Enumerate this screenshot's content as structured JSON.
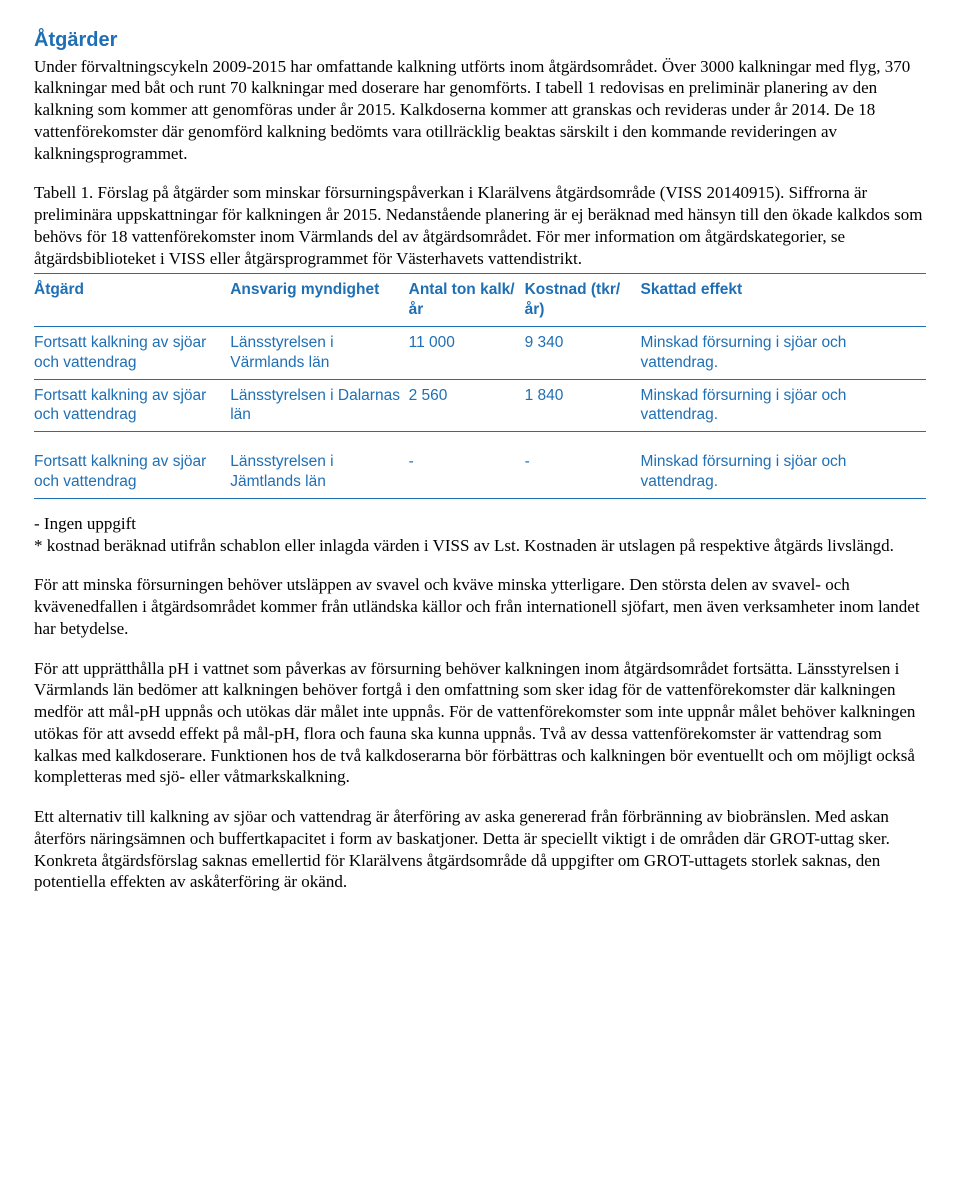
{
  "colors": {
    "heading_blue": "#1f6fb5",
    "table_blue": "#1f6fb5",
    "body_text": "#000000",
    "border_blue": "#1f6fb5"
  },
  "heading": "Åtgärder",
  "para1": "Under förvaltningscykeln 2009-2015 har omfattande kalkning utförts inom åtgärdsområdet. Över 3000 kalkningar med flyg, 370 kalkningar med båt och runt 70 kalkningar med doserare har genomförts. I tabell 1 redovisas en preliminär planering av den kalkning som kommer att genomföras under år 2015. Kalkdoserna kommer att granskas och revideras under år 2014. De 18 vattenförekomster där genomförd kalkning bedömts vara otillräcklig beaktas särskilt i den kommande revideringen av kalkningsprogrammet.",
  "para2": "Tabell 1. Förslag på åtgärder som minskar försurningspåverkan i Klarälvens åtgärdsområde (VISS 20140915). Siffrorna är preliminära uppskattningar för kalkningen år 2015. Nedanstående planering är ej beräknad med hänsyn till den ökade kalkdos som behövs för 18 vattenförekomster inom Värmlands del av åtgärdsområdet. För mer information om åtgärdskategorier, se åtgärdsbiblioteket i VISS eller åtgärsprogrammet för Västerhavets vattendistrikt.",
  "table": {
    "headers": {
      "atgard": "Åtgärd",
      "myndighet": "Ansvarig myndighet",
      "kalk": "Antal ton kalk/år",
      "kostnad": "Kostnad (tkr/år)",
      "effekt": "Skattad effekt"
    },
    "rows": [
      {
        "atgard": "Fortsatt kalkning av sjöar och vattendrag",
        "myndighet": "Länsstyrelsen i Värmlands län",
        "kalk": "11 000",
        "kostnad": "9 340",
        "effekt": "Minskad försurning i sjöar och vattendrag."
      },
      {
        "atgard": "Fortsatt kalkning av sjöar och vattendrag",
        "myndighet": "Länsstyrelsen i Dalarnas län",
        "kalk": "2 560",
        "kostnad": "1 840",
        "effekt": "Minskad försurning i sjöar och vattendrag."
      },
      {
        "atgard": "Fortsatt kalkning av sjöar och vattendrag",
        "myndighet": "Länsstyrelsen i Jämtlands län",
        "kalk": "-",
        "kostnad": "-",
        "effekt": "Minskad försurning i sjöar och vattendrag."
      }
    ]
  },
  "footnote": "- Ingen uppgift\n* kostnad beräknad utifrån schablon eller inlagda värden i VISS av Lst. Kostnaden är utslagen på respektive åtgärds livslängd.",
  "para3": "För att minska försurningen behöver utsläppen av svavel och kväve minska ytterligare. Den största delen av svavel- och kvävenedfallen i åtgärdsområdet kommer från utländska källor och från internationell sjöfart, men även verksamheter inom landet har betydelse.",
  "para4": "För att upprätthålla pH i vattnet som påverkas av försurning behöver kalkningen inom åtgärdsområdet fortsätta. Länsstyrelsen i Värmlands län bedömer att kalkningen behöver fortgå i den omfattning som sker idag för de vattenförekomster där kalkningen medför att mål-pH uppnås och utökas där målet inte uppnås. För de vattenförekomster som inte uppnår målet behöver kalkningen utökas för att avsedd effekt på mål-pH, flora och fauna ska kunna uppnås. Två av dessa vattenförekomster är vattendrag som kalkas med kalkdoserare. Funktionen hos de två kalkdoserarna bör förbättras och kalkningen bör eventuellt och om möjligt också kompletteras med sjö- eller våtmarkskalkning.",
  "para5": "Ett alternativ till kalkning av sjöar och vattendrag är återföring av aska genererad från förbränning av biobränslen. Med askan återförs näringsämnen och buffertkapacitet i form av baskatjoner. Detta är speciellt viktigt i de områden där GROT-uttag sker. Konkreta åtgärdsförslag saknas emellertid för Klarälvens åtgärdsområde då uppgifter om GROT-uttagets storlek saknas, den potentiella effekten av askåterföring är okänd."
}
